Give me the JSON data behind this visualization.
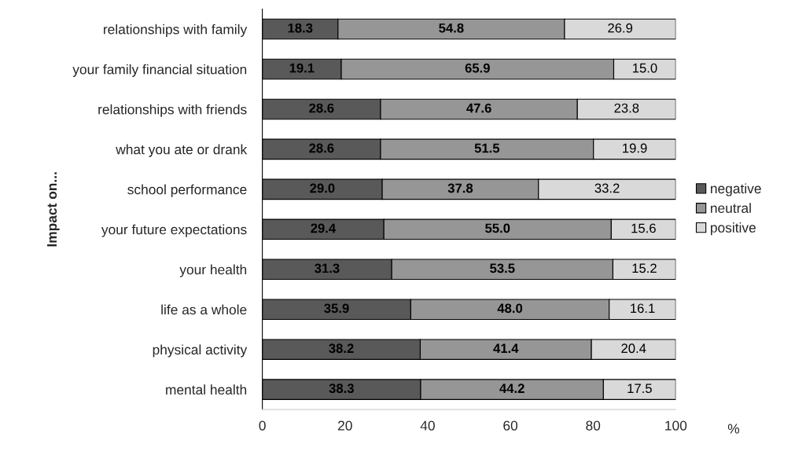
{
  "chart_data": {
    "type": "bar",
    "orientation": "horizontal",
    "stacked": true,
    "ylabel": "Impact on...",
    "xlabel": "%",
    "categories": [
      "relationships with family",
      "your family financial situation",
      "relationships with friends",
      "what you ate or drank",
      "school performance",
      "your future expectations",
      "your health",
      "life as a whole",
      "physical activity",
      "mental health"
    ],
    "series": [
      {
        "name": "negative",
        "color": "#595959",
        "values": [
          18.3,
          19.1,
          28.6,
          28.6,
          29.0,
          29.4,
          31.3,
          35.9,
          38.2,
          38.3
        ],
        "value_labels": [
          "18.3",
          "19.1",
          "28.6",
          "28.6",
          "29.0",
          "29.4",
          "31.3",
          "35.9",
          "38.2",
          "38.3"
        ]
      },
      {
        "name": "neutral",
        "color": "#969696",
        "values": [
          54.8,
          65.9,
          47.6,
          51.5,
          37.8,
          55.0,
          53.5,
          48.0,
          41.4,
          44.2
        ],
        "value_labels": [
          "54.8",
          "65.9",
          "47.6",
          "51.5",
          "37.8",
          "55.0",
          "53.5",
          "48.0",
          "41.4",
          "44.2"
        ]
      },
      {
        "name": "positive",
        "color": "#d9d9d9",
        "values": [
          26.9,
          15.0,
          23.8,
          19.9,
          33.2,
          15.6,
          15.2,
          16.1,
          20.4,
          17.5
        ],
        "value_labels": [
          "26.9",
          "15.0",
          "23.8",
          "19.9",
          "33.2",
          "15.6",
          "15.2",
          "16.1",
          "20.4",
          "17.5"
        ]
      }
    ],
    "xlim": [
      0,
      100
    ],
    "xticks": [
      0,
      20,
      40,
      60,
      80,
      100
    ],
    "grid": false,
    "legend": "right"
  }
}
